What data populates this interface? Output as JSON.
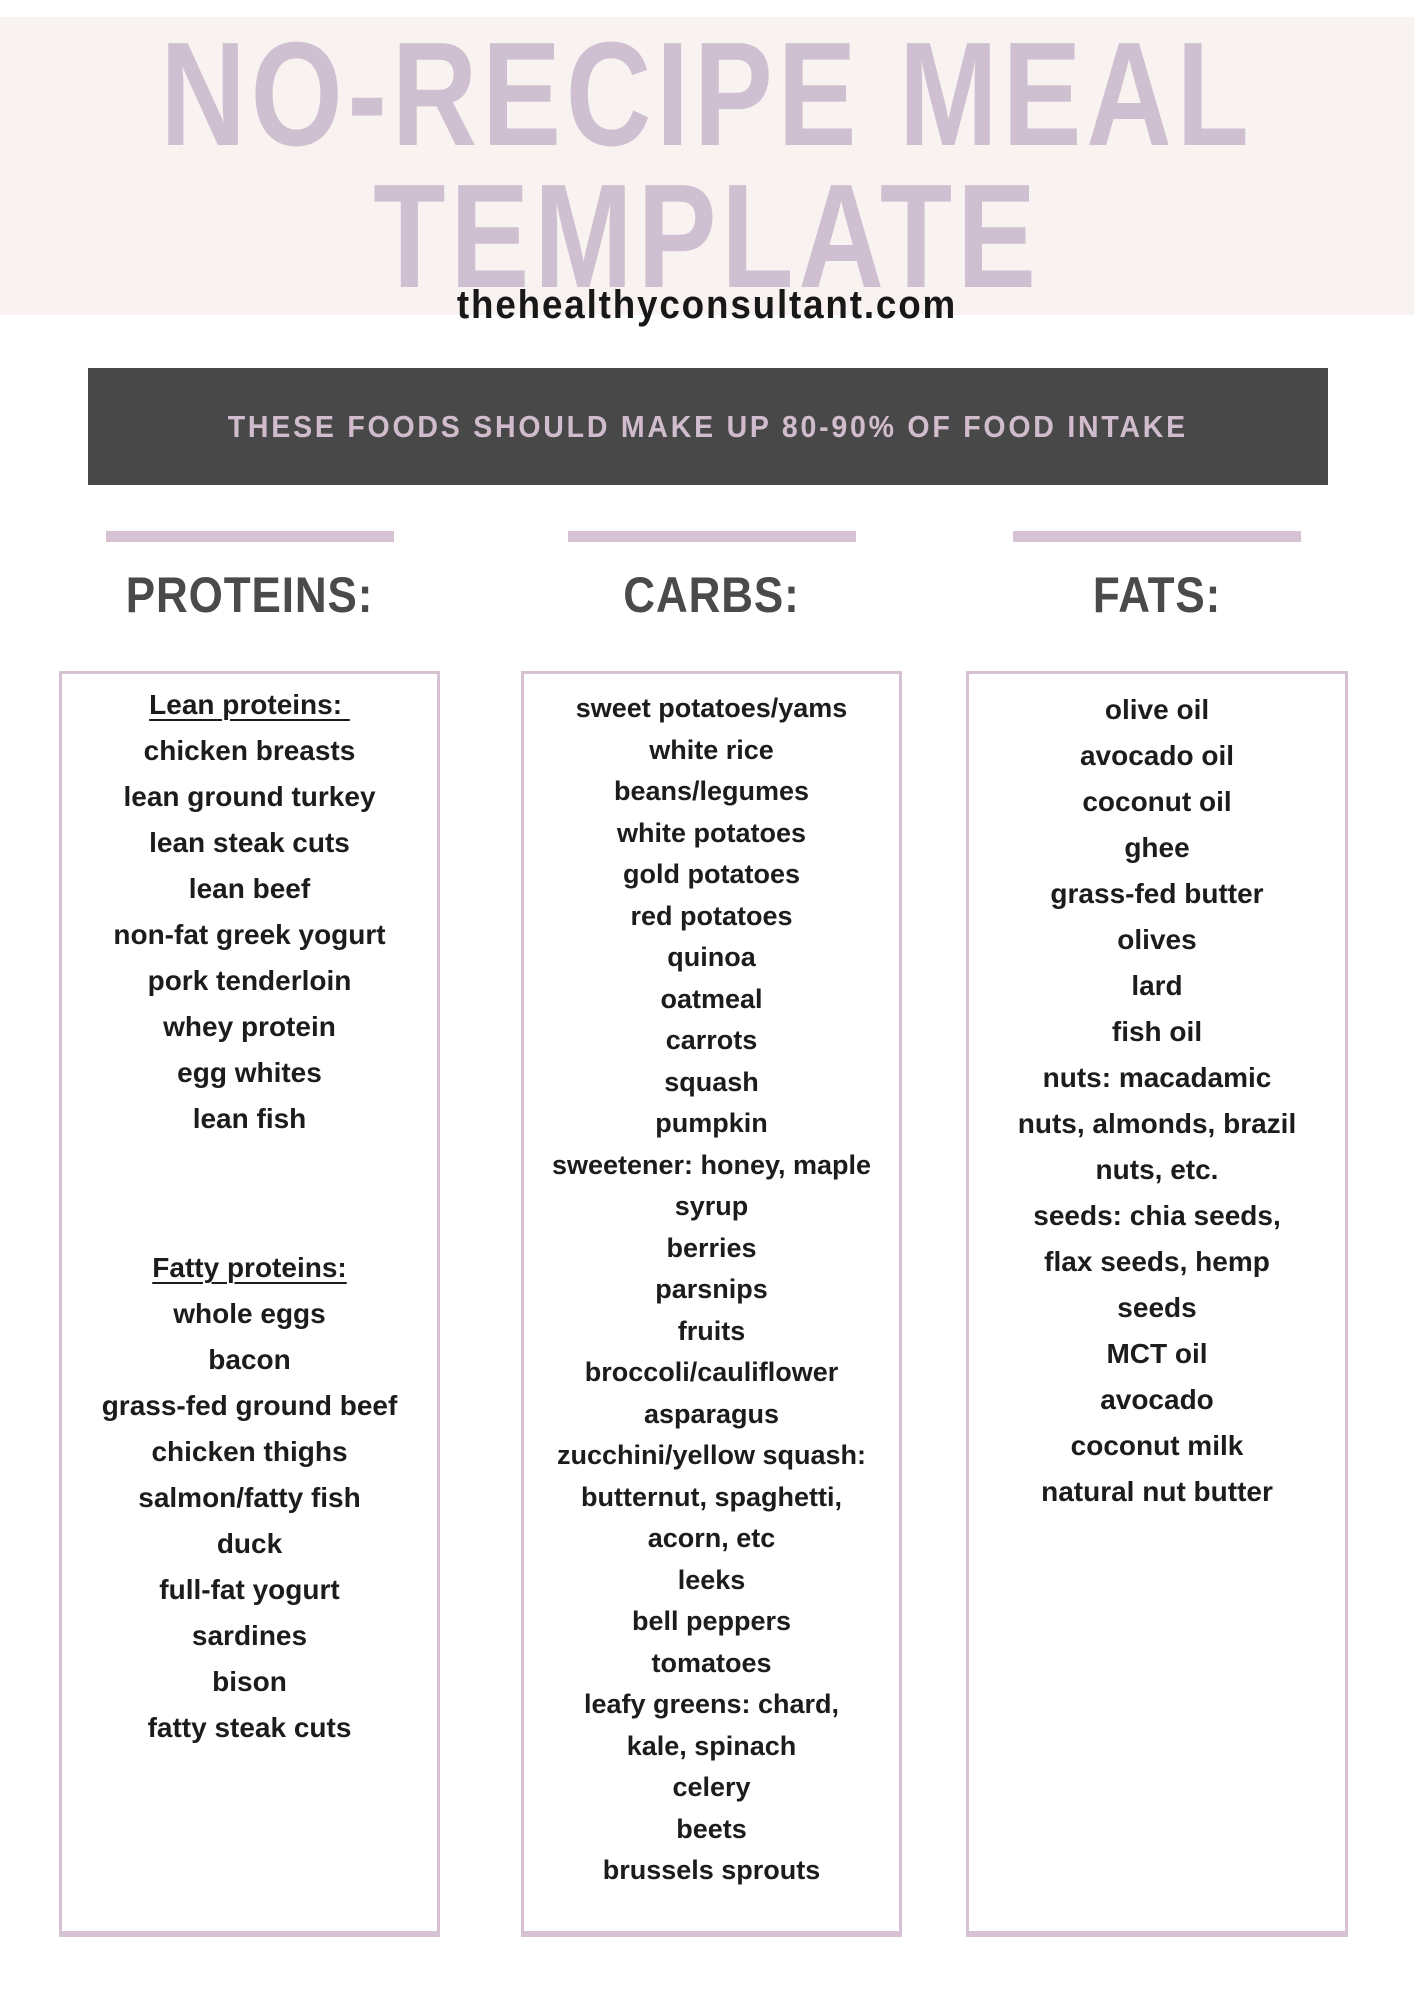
{
  "header": {
    "title_line1": "NO-RECIPE MEAL",
    "title_line2": "TEMPLATE",
    "website": "thehealthyconsultant.com"
  },
  "banner": {
    "text": "THESE FOODS SHOULD MAKE UP 80-90% OF FOOD INTAKE"
  },
  "columns": [
    {
      "header": "PROTEINS:",
      "lines": [
        {
          "text": "Lean proteins: ",
          "u": 1
        },
        "chicken breasts",
        "lean ground turkey",
        "lean steak cuts",
        "lean beef",
        "non-fat greek yogurt",
        "pork tenderloin",
        "whey protein",
        "egg whites",
        "lean fish",
        {
          "gap": 103
        },
        {
          "text": "Fatty proteins:",
          "u": 1
        },
        "whole eggs",
        "bacon",
        "grass-fed ground beef",
        "chicken thighs",
        "salmon/fatty fish",
        "duck",
        "full-fat yogurt",
        "sardines",
        "bison",
        "fatty steak cuts"
      ]
    },
    {
      "header": "CARBS:",
      "lines": [
        "sweet potatoes/yams",
        "white rice",
        "beans/legumes",
        "white potatoes",
        "gold potatoes",
        "red potatoes",
        "quinoa",
        "oatmeal",
        "carrots",
        "squash",
        "pumpkin",
        "sweetener: honey, maple",
        "syrup",
        "berries",
        "parsnips",
        "fruits",
        "broccoli/cauliflower",
        "asparagus",
        "zucchini/yellow squash:",
        "butternut, spaghetti,",
        "acorn, etc",
        "leeks",
        "bell peppers",
        "tomatoes",
        "leafy greens: chard,",
        "kale, spinach",
        "celery",
        "beets",
        "brussels sprouts"
      ]
    },
    {
      "header": "FATS:",
      "lines": [
        "olive oil",
        "avocado oil",
        "coconut oil",
        "ghee",
        "grass-fed butter",
        "olives",
        "lard",
        "fish oil",
        "nuts: macadamic",
        "nuts, almonds, brazil",
        "nuts, etc.",
        "seeds: chia seeds,",
        "flax seeds, hemp",
        "seeds",
        "MCT oil",
        "avocado",
        "coconut milk",
        "natural nut butter"
      ]
    }
  ],
  "colors": {
    "hero_bg": "#f8f2f0",
    "title": "#cfc0d1",
    "banner_bg": "#484848",
    "banner_fg": "#d0bccc",
    "accent": "#d6c2d2",
    "header_fg": "#4a4a4a",
    "body_fg": "#1c1c1c"
  }
}
